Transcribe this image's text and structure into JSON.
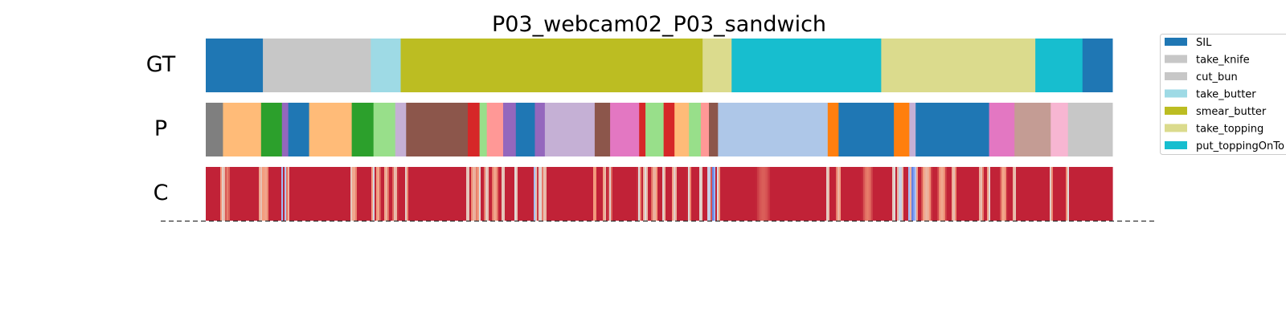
{
  "chart_data": {
    "type": "segmentation-timeline",
    "title": "P03_webcam02_P03_sandwich",
    "duration": 1000,
    "rows": [
      {
        "label": "GT",
        "kind": "segments"
      },
      {
        "label": "P",
        "kind": "segments"
      },
      {
        "label": "C",
        "kind": "confidence"
      }
    ],
    "legend": {
      "position": "top-right",
      "entries": [
        {
          "label": "SIL",
          "color": "#1f77b4"
        },
        {
          "label": "take_knife",
          "color": "#c7c7c7"
        },
        {
          "label": "cut_bun",
          "color": "#c7c7c7"
        },
        {
          "label": "take_butter",
          "color": "#9edae5"
        },
        {
          "label": "smear_butter",
          "color": "#bcbd22"
        },
        {
          "label": "take_topping",
          "color": "#dbdb8d"
        },
        {
          "label": "put_toppingOnTo",
          "color": "#17becf"
        }
      ]
    },
    "gt_segments": [
      {
        "start": 0,
        "end": 63,
        "color": "#1f77b4"
      },
      {
        "start": 63,
        "end": 182,
        "color": "#c7c7c7"
      },
      {
        "start": 182,
        "end": 215,
        "color": "#9edae5"
      },
      {
        "start": 215,
        "end": 548,
        "color": "#bcbd22"
      },
      {
        "start": 548,
        "end": 580,
        "color": "#dbdb8d"
      },
      {
        "start": 580,
        "end": 745,
        "color": "#17becf"
      },
      {
        "start": 745,
        "end": 915,
        "color": "#dbdb8d"
      },
      {
        "start": 915,
        "end": 967,
        "color": "#17becf"
      },
      {
        "start": 967,
        "end": 1000,
        "color": "#1f77b4"
      }
    ],
    "pred_segments": [
      {
        "start": 0,
        "end": 19,
        "color": "#7f7f7f"
      },
      {
        "start": 19,
        "end": 61,
        "color": "#ffbb78"
      },
      {
        "start": 61,
        "end": 84,
        "color": "#2ca02c"
      },
      {
        "start": 84,
        "end": 91,
        "color": "#9467bd"
      },
      {
        "start": 91,
        "end": 114,
        "color": "#1f77b4"
      },
      {
        "start": 114,
        "end": 161,
        "color": "#ffbb78"
      },
      {
        "start": 161,
        "end": 185,
        "color": "#2ca02c"
      },
      {
        "start": 185,
        "end": 209,
        "color": "#98df8a"
      },
      {
        "start": 209,
        "end": 221,
        "color": "#c5b0d5"
      },
      {
        "start": 221,
        "end": 289,
        "color": "#8c564b"
      },
      {
        "start": 289,
        "end": 302,
        "color": "#d62728"
      },
      {
        "start": 302,
        "end": 310,
        "color": "#98df8a"
      },
      {
        "start": 310,
        "end": 328,
        "color": "#ff9896"
      },
      {
        "start": 328,
        "end": 342,
        "color": "#9467bd"
      },
      {
        "start": 342,
        "end": 363,
        "color": "#1f77b4"
      },
      {
        "start": 363,
        "end": 374,
        "color": "#9467bd"
      },
      {
        "start": 374,
        "end": 429,
        "color": "#c5b0d5"
      },
      {
        "start": 429,
        "end": 446,
        "color": "#8c564b"
      },
      {
        "start": 446,
        "end": 478,
        "color": "#e377c2"
      },
      {
        "start": 478,
        "end": 485,
        "color": "#d62728"
      },
      {
        "start": 485,
        "end": 505,
        "color": "#98df8a"
      },
      {
        "start": 505,
        "end": 517,
        "color": "#d62728"
      },
      {
        "start": 517,
        "end": 533,
        "color": "#ffbb78"
      },
      {
        "start": 533,
        "end": 546,
        "color": "#98df8a"
      },
      {
        "start": 546,
        "end": 555,
        "color": "#ff9896"
      },
      {
        "start": 555,
        "end": 565,
        "color": "#8c564b"
      },
      {
        "start": 565,
        "end": 686,
        "color": "#aec7e8"
      },
      {
        "start": 686,
        "end": 698,
        "color": "#ff7f0e"
      },
      {
        "start": 698,
        "end": 759,
        "color": "#1f77b4"
      },
      {
        "start": 759,
        "end": 776,
        "color": "#ff7f0e"
      },
      {
        "start": 776,
        "end": 783,
        "color": "#c5b0d5"
      },
      {
        "start": 783,
        "end": 864,
        "color": "#1f77b4"
      },
      {
        "start": 864,
        "end": 892,
        "color": "#e377c2"
      },
      {
        "start": 892,
        "end": 932,
        "color": "#c49c94"
      },
      {
        "start": 932,
        "end": 951,
        "color": "#f7b6d2"
      },
      {
        "start": 951,
        "end": 1000,
        "color": "#c7c7c7"
      }
    ],
    "confidence": {
      "base_value": 0.95,
      "dips": [
        {
          "t": 19,
          "v": 0.55,
          "w": 3
        },
        {
          "t": 24,
          "v": 0.8,
          "w": 3
        },
        {
          "t": 61,
          "v": 0.6,
          "w": 3
        },
        {
          "t": 66,
          "v": 0.7,
          "w": 4
        },
        {
          "t": 84,
          "v": 0.3,
          "w": 1.5
        },
        {
          "t": 88,
          "v": 0.35,
          "w": 1.5
        },
        {
          "t": 91,
          "v": 0.65,
          "w": 2
        },
        {
          "t": 161,
          "v": 0.55,
          "w": 2
        },
        {
          "t": 164,
          "v": 0.7,
          "w": 3
        },
        {
          "t": 185,
          "v": 0.45,
          "w": 2
        },
        {
          "t": 190,
          "v": 0.7,
          "w": 3
        },
        {
          "t": 199,
          "v": 0.65,
          "w": 3
        },
        {
          "t": 209,
          "v": 0.6,
          "w": 3
        },
        {
          "t": 221,
          "v": 0.55,
          "w": 2
        },
        {
          "t": 289,
          "v": 0.5,
          "w": 2
        },
        {
          "t": 296,
          "v": 0.65,
          "w": 4
        },
        {
          "t": 302,
          "v": 0.5,
          "w": 2
        },
        {
          "t": 310,
          "v": 0.55,
          "w": 3
        },
        {
          "t": 319,
          "v": 0.7,
          "w": 4
        },
        {
          "t": 328,
          "v": 0.5,
          "w": 2
        },
        {
          "t": 342,
          "v": 0.45,
          "w": 2
        },
        {
          "t": 363,
          "v": 0.3,
          "w": 2
        },
        {
          "t": 369,
          "v": 0.5,
          "w": 3
        },
        {
          "t": 374,
          "v": 0.55,
          "w": 2
        },
        {
          "t": 429,
          "v": 0.7,
          "w": 2
        },
        {
          "t": 440,
          "v": 0.6,
          "w": 2
        },
        {
          "t": 446,
          "v": 0.55,
          "w": 2
        },
        {
          "t": 478,
          "v": 0.5,
          "w": 2
        },
        {
          "t": 485,
          "v": 0.5,
          "w": 3
        },
        {
          "t": 495,
          "v": 0.65,
          "w": 4
        },
        {
          "t": 505,
          "v": 0.5,
          "w": 2
        },
        {
          "t": 517,
          "v": 0.55,
          "w": 3
        },
        {
          "t": 533,
          "v": 0.5,
          "w": 2
        },
        {
          "t": 546,
          "v": 0.45,
          "w": 2
        },
        {
          "t": 555,
          "v": 0.3,
          "w": 2
        },
        {
          "t": 560,
          "v": 0.08,
          "w": 2.5
        },
        {
          "t": 565,
          "v": 0.5,
          "w": 2
        },
        {
          "t": 615,
          "v": 0.85,
          "w": 8
        },
        {
          "t": 686,
          "v": 0.5,
          "w": 2
        },
        {
          "t": 698,
          "v": 0.65,
          "w": 3
        },
        {
          "t": 730,
          "v": 0.8,
          "w": 6
        },
        {
          "t": 759,
          "v": 0.45,
          "w": 2
        },
        {
          "t": 766,
          "v": 0.4,
          "w": 4
        },
        {
          "t": 776,
          "v": 0.3,
          "w": 2
        },
        {
          "t": 780,
          "v": 0.05,
          "w": 2.5
        },
        {
          "t": 783,
          "v": 0.35,
          "w": 2
        },
        {
          "t": 795,
          "v": 0.65,
          "w": 6
        },
        {
          "t": 812,
          "v": 0.7,
          "w": 5
        },
        {
          "t": 825,
          "v": 0.6,
          "w": 3
        },
        {
          "t": 855,
          "v": 0.6,
          "w": 3
        },
        {
          "t": 864,
          "v": 0.5,
          "w": 2
        },
        {
          "t": 880,
          "v": 0.7,
          "w": 4
        },
        {
          "t": 892,
          "v": 0.55,
          "w": 2
        },
        {
          "t": 932,
          "v": 0.55,
          "w": 2
        },
        {
          "t": 951,
          "v": 0.5,
          "w": 2
        }
      ]
    }
  }
}
